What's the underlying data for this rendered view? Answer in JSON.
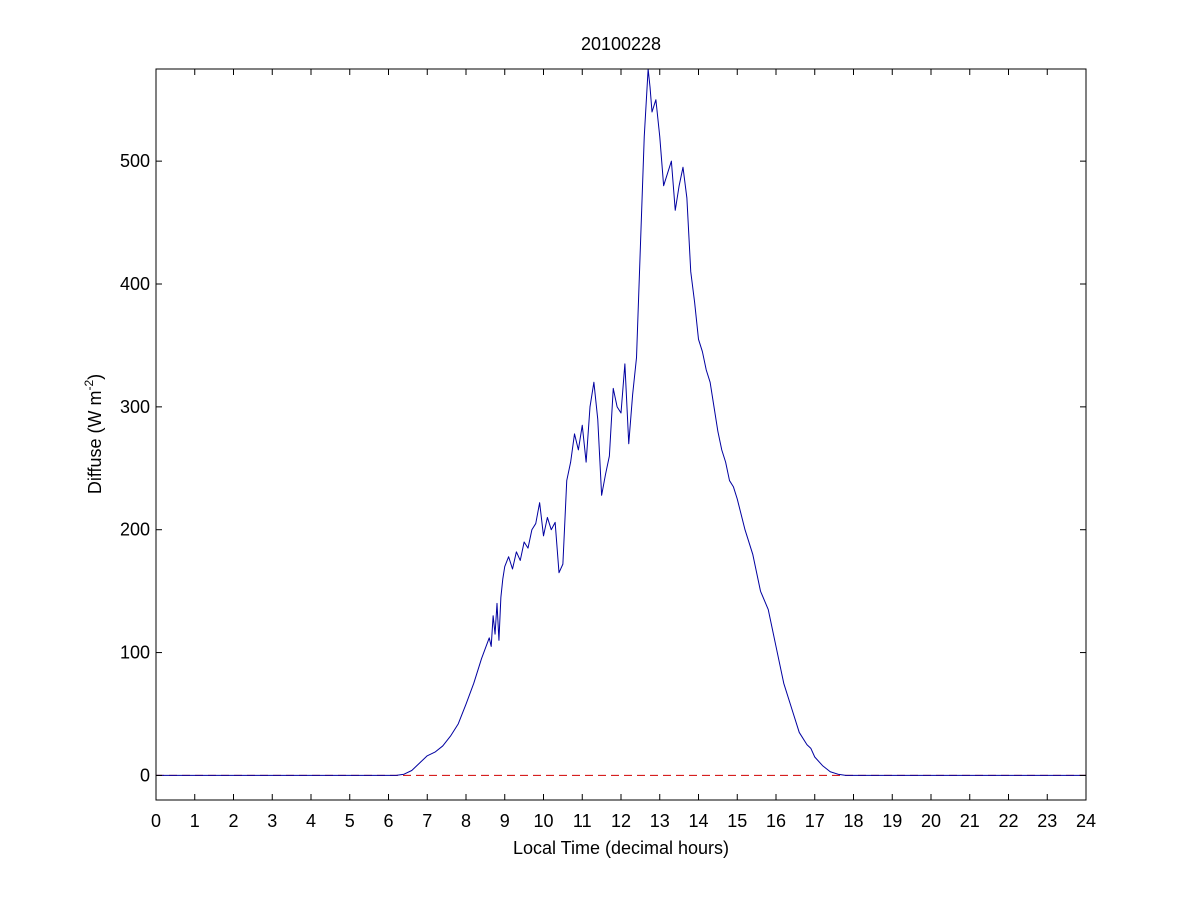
{
  "chart_data": {
    "type": "line",
    "title": "20100228",
    "xlabel": "Local Time (decimal hours)",
    "ylabel_base": "Diffuse (W m",
    "ylabel_sup": "-2",
    "ylabel_close": ")",
    "xlim": [
      0,
      24
    ],
    "ylim": [
      -20,
      575
    ],
    "xticks": [
      0,
      1,
      2,
      3,
      4,
      5,
      6,
      7,
      8,
      9,
      10,
      11,
      12,
      13,
      14,
      15,
      16,
      17,
      18,
      19,
      20,
      21,
      22,
      23,
      24
    ],
    "yticks": [
      0,
      100,
      200,
      300,
      400,
      500
    ],
    "grid": false,
    "series": [
      {
        "color": "#0000a0",
        "style": "solid",
        "x": [
          0,
          6.2,
          6.4,
          6.6,
          6.8,
          7.0,
          7.2,
          7.4,
          7.6,
          7.8,
          8.0,
          8.2,
          8.4,
          8.6,
          8.65,
          8.7,
          8.75,
          8.8,
          8.85,
          8.9,
          8.95,
          9.0,
          9.1,
          9.2,
          9.3,
          9.4,
          9.5,
          9.6,
          9.7,
          9.8,
          9.9,
          10.0,
          10.1,
          10.2,
          10.3,
          10.4,
          10.5,
          10.6,
          10.7,
          10.8,
          10.9,
          11.0,
          11.1,
          11.2,
          11.3,
          11.4,
          11.5,
          11.6,
          11.7,
          11.8,
          11.9,
          12.0,
          12.1,
          12.2,
          12.3,
          12.4,
          12.5,
          12.6,
          12.7,
          12.75,
          12.8,
          12.9,
          13.0,
          13.1,
          13.2,
          13.3,
          13.4,
          13.5,
          13.6,
          13.7,
          13.8,
          13.9,
          14.0,
          14.1,
          14.2,
          14.3,
          14.4,
          14.5,
          14.6,
          14.7,
          14.8,
          14.9,
          15.0,
          15.2,
          15.4,
          15.6,
          15.8,
          16.0,
          16.2,
          16.4,
          16.6,
          16.8,
          16.9,
          17.0,
          17.2,
          17.4,
          17.6,
          17.8,
          18.0,
          18.2,
          24
        ],
        "y": [
          0,
          0,
          1,
          4,
          10,
          16,
          19,
          24,
          32,
          42,
          58,
          75,
          95,
          112,
          105,
          130,
          115,
          140,
          110,
          145,
          160,
          170,
          178,
          168,
          182,
          175,
          190,
          185,
          200,
          205,
          222,
          195,
          210,
          200,
          206,
          165,
          172,
          240,
          255,
          278,
          265,
          285,
          255,
          300,
          320,
          290,
          228,
          245,
          260,
          315,
          300,
          295,
          335,
          270,
          310,
          340,
          430,
          520,
          575,
          560,
          540,
          550,
          520,
          480,
          490,
          500,
          460,
          480,
          495,
          470,
          410,
          385,
          355,
          345,
          330,
          320,
          300,
          280,
          265,
          255,
          240,
          235,
          225,
          200,
          180,
          150,
          135,
          105,
          75,
          55,
          35,
          25,
          22,
          15,
          8,
          3,
          1,
          0,
          0,
          0,
          0
        ]
      },
      {
        "color": "#d00000",
        "style": "dashed",
        "x": [
          0,
          24
        ],
        "y": [
          0,
          0
        ]
      }
    ]
  }
}
